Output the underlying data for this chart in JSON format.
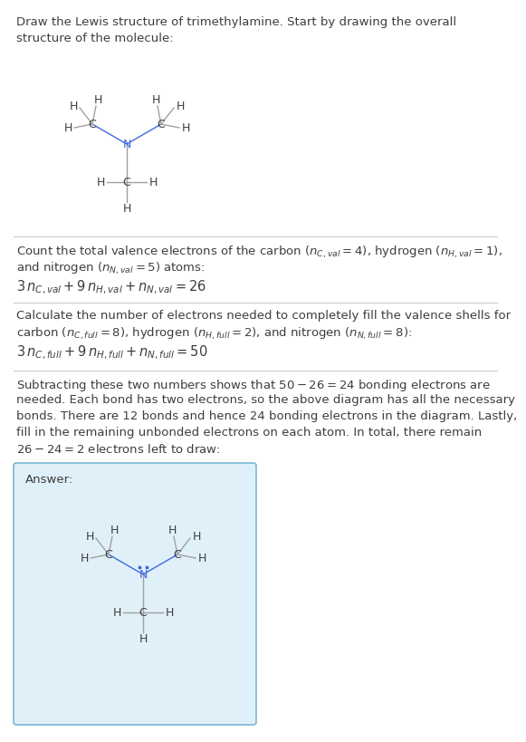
{
  "bg_color": "#ffffff",
  "text_color": "#3d3d3d",
  "N_color": "#4169e1",
  "bond_color": "#a0a0a0",
  "divider_color": "#cccccc",
  "answer_box_color": "#dff0f8",
  "answer_box_border": "#7ab8d4",
  "font_size_body": 9.5,
  "font_size_eq": 10.5,
  "title": "Draw the Lewis structure of trimethylamine. Start by drawing the overall\nstructure of the molecule:",
  "s1_line1": "Count the total valence electrons of the carbon ($n_{C,val} = 4$), hydrogen ($n_{H,val} = 1$),",
  "s1_line2": "and nitrogen ($n_{N,val} = 5$) atoms:",
  "s1_eq": "$3\\, n_{C,val} + 9\\, n_{H,val} + n_{N,val} = 26$",
  "s2_line1": "Calculate the number of electrons needed to completely fill the valence shells for",
  "s2_line2": "carbon ($n_{C,full} = 8$), hydrogen ($n_{H,full} = 2$), and nitrogen ($n_{N,full} = 8$):",
  "s2_eq": "$3\\, n_{C,full} + 9\\, n_{H,full} + n_{N,full} = 50$",
  "s3_lines": [
    "Subtracting these two numbers shows that $50 - 26 = 24$ bonding electrons are",
    "needed. Each bond has two electrons, so the above diagram has all the necessary",
    "bonds. There are 12 bonds and hence 24 bonding electrons in the diagram. Lastly,",
    "fill in the remaining unbonded electrons on each atom. In total, there remain",
    "$26 - 24 = 2$ electrons left to draw:"
  ],
  "answer_label": "Answer:"
}
